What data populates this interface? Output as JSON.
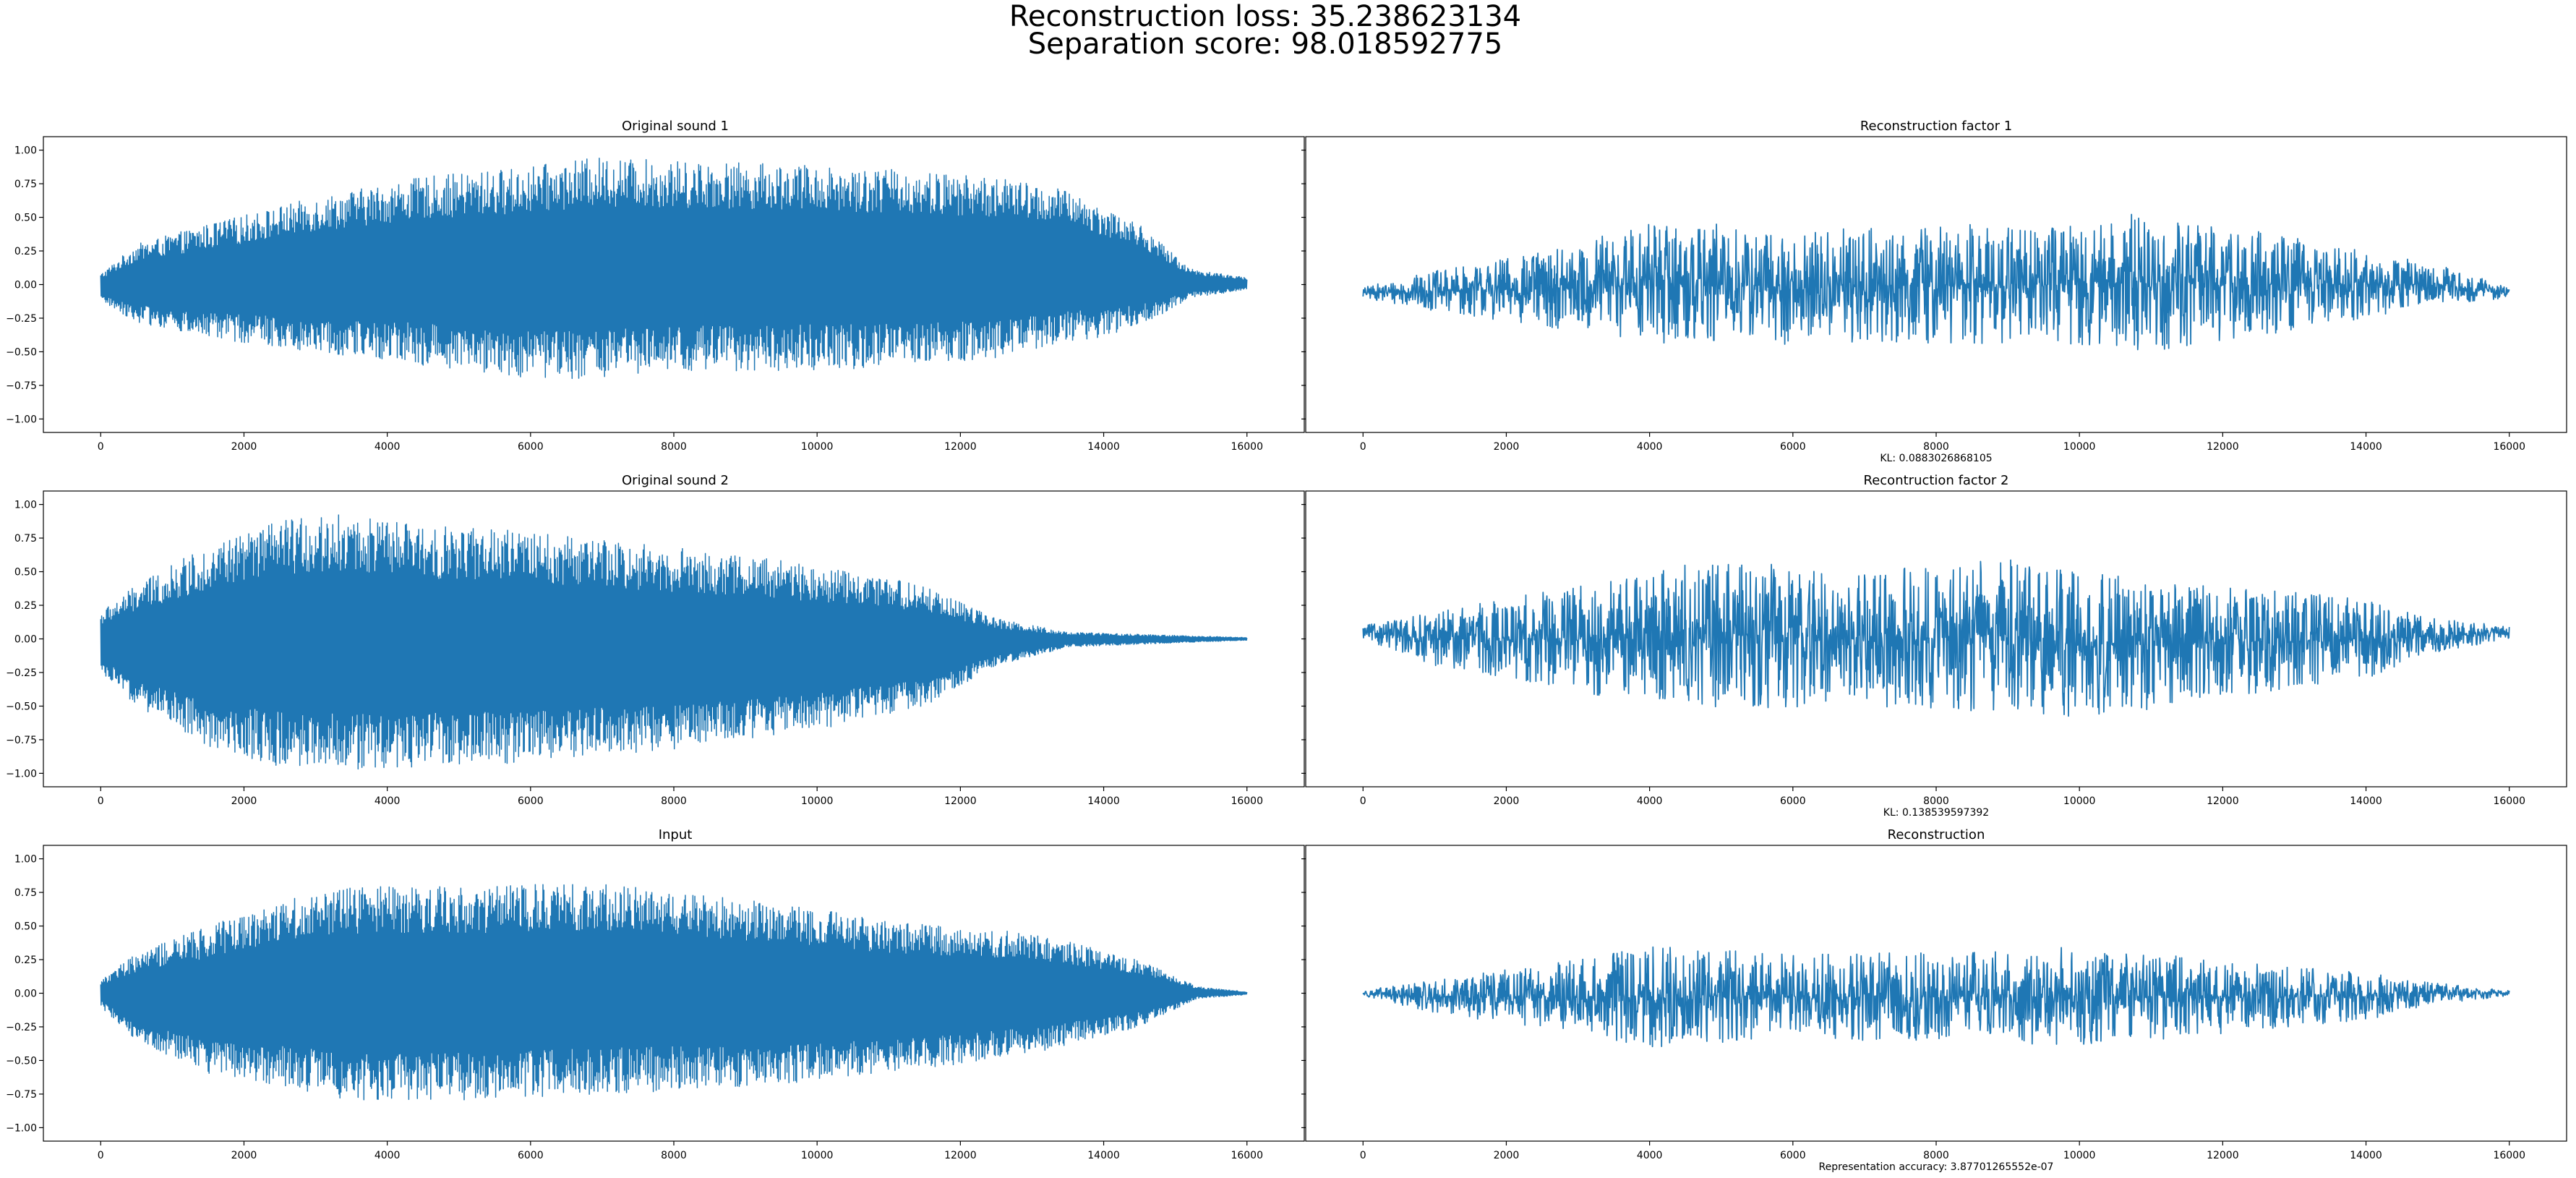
{
  "figure": {
    "title_line1": "Reconstruction loss: 35.238623134",
    "title_line2": "Separation score: 98.018592775",
    "line_color": "#1f77b4"
  },
  "chart_data": [
    {
      "type": "line",
      "title": "Original sound 1",
      "xlabel": "",
      "xlim": [
        -800,
        16800
      ],
      "ylim": [
        -1.1,
        1.1
      ],
      "x_ticks": [
        0,
        2000,
        4000,
        6000,
        8000,
        10000,
        12000,
        14000,
        16000
      ],
      "x_tick_labels": [
        "0",
        "2000",
        "4000",
        "6000",
        "8000",
        "10000",
        "12000",
        "14000",
        "16000"
      ],
      "y_ticks": [
        -1.0,
        -0.75,
        -0.5,
        -0.25,
        0.0,
        0.25,
        0.5,
        0.75,
        1.0
      ],
      "y_tick_labels": [
        "−1.00",
        "−0.75",
        "−0.50",
        "−0.25",
        "0.00",
        "0.25",
        "0.50",
        "0.75",
        "1.00"
      ],
      "series": [
        {
          "name": "",
          "samples": 16000,
          "envelope_upper": [
            [
              0,
              0.08
            ],
            [
              500,
              0.3
            ],
            [
              1500,
              0.45
            ],
            [
              3000,
              0.65
            ],
            [
              4500,
              0.8
            ],
            [
              6000,
              0.88
            ],
            [
              7000,
              0.95
            ],
            [
              8000,
              0.92
            ],
            [
              9500,
              0.9
            ],
            [
              11000,
              0.86
            ],
            [
              12500,
              0.8
            ],
            [
              13500,
              0.7
            ],
            [
              14500,
              0.45
            ],
            [
              15200,
              0.12
            ],
            [
              16000,
              0.05
            ]
          ],
          "envelope_lower": [
            [
              0,
              -0.12
            ],
            [
              500,
              -0.28
            ],
            [
              1500,
              -0.4
            ],
            [
              3000,
              -0.5
            ],
            [
              4500,
              -0.6
            ],
            [
              6000,
              -0.7
            ],
            [
              7000,
              -0.7
            ],
            [
              8000,
              -0.66
            ],
            [
              9500,
              -0.64
            ],
            [
              11000,
              -0.62
            ],
            [
              12500,
              -0.55
            ],
            [
              13500,
              -0.45
            ],
            [
              14500,
              -0.32
            ],
            [
              15200,
              -0.1
            ],
            [
              16000,
              -0.04
            ]
          ]
        }
      ]
    },
    {
      "type": "line",
      "title": "Reconstruction factor 1",
      "xlabel": "KL: 0.0883026868105",
      "xlim": [
        -800,
        16800
      ],
      "ylim": [
        -1.1,
        1.1
      ],
      "x_ticks": [
        0,
        2000,
        4000,
        6000,
        8000,
        10000,
        12000,
        14000,
        16000
      ],
      "x_tick_labels": [
        "0",
        "2000",
        "4000",
        "6000",
        "8000",
        "10000",
        "12000",
        "14000",
        "16000"
      ],
      "series": [
        {
          "name": "",
          "samples": 16000,
          "envelope_upper": [
            [
              0,
              -0.02
            ],
            [
              1000,
              0.1
            ],
            [
              3000,
              0.3
            ],
            [
              4000,
              0.5
            ],
            [
              6000,
              0.4
            ],
            [
              8000,
              0.45
            ],
            [
              10000,
              0.45
            ],
            [
              11000,
              0.55
            ],
            [
              13000,
              0.35
            ],
            [
              15000,
              0.15
            ],
            [
              16000,
              -0.02
            ]
          ],
          "envelope_lower": [
            [
              0,
              -0.1
            ],
            [
              1000,
              -0.2
            ],
            [
              3000,
              -0.35
            ],
            [
              4000,
              -0.45
            ],
            [
              6000,
              -0.45
            ],
            [
              8000,
              -0.45
            ],
            [
              10000,
              -0.45
            ],
            [
              11000,
              -0.5
            ],
            [
              13000,
              -0.35
            ],
            [
              15000,
              -0.15
            ],
            [
              16000,
              -0.1
            ]
          ]
        }
      ]
    },
    {
      "type": "line",
      "title": "Original sound 2",
      "xlabel": "",
      "xlim": [
        -800,
        16800
      ],
      "ylim": [
        -1.1,
        1.1
      ],
      "x_ticks": [
        0,
        2000,
        4000,
        6000,
        8000,
        10000,
        12000,
        14000,
        16000
      ],
      "x_tick_labels": [
        "0",
        "2000",
        "4000",
        "6000",
        "8000",
        "10000",
        "12000",
        "14000",
        "16000"
      ],
      "y_ticks": [
        -1.0,
        -0.75,
        -0.5,
        -0.25,
        0.0,
        0.25,
        0.5,
        0.75,
        1.0
      ],
      "y_tick_labels": [
        "−1.00",
        "−0.75",
        "−0.50",
        "−0.25",
        "0.00",
        "0.25",
        "0.50",
        "0.75",
        "1.00"
      ],
      "series": [
        {
          "name": "",
          "samples": 16000,
          "envelope_upper": [
            [
              0,
              0.2
            ],
            [
              500,
              0.4
            ],
            [
              1500,
              0.7
            ],
            [
              2500,
              0.88
            ],
            [
              3300,
              0.93
            ],
            [
              4500,
              0.85
            ],
            [
              6000,
              0.8
            ],
            [
              8000,
              0.68
            ],
            [
              10000,
              0.55
            ],
            [
              11500,
              0.4
            ],
            [
              12500,
              0.15
            ],
            [
              13500,
              0.05
            ],
            [
              16000,
              0.01
            ]
          ],
          "envelope_lower": [
            [
              0,
              -0.25
            ],
            [
              500,
              -0.5
            ],
            [
              1500,
              -0.8
            ],
            [
              2500,
              -0.95
            ],
            [
              3300,
              -0.98
            ],
            [
              4500,
              -0.95
            ],
            [
              6000,
              -0.92
            ],
            [
              8000,
              -0.82
            ],
            [
              10000,
              -0.68
            ],
            [
              11500,
              -0.5
            ],
            [
              12500,
              -0.2
            ],
            [
              13500,
              -0.06
            ],
            [
              16000,
              -0.01
            ]
          ]
        }
      ]
    },
    {
      "type": "line",
      "title": "Recontruction factor 2",
      "xlabel": "KL: 0.138539597392",
      "xlim": [
        -800,
        16800
      ],
      "ylim": [
        -1.1,
        1.1
      ],
      "x_ticks": [
        0,
        2000,
        4000,
        6000,
        8000,
        10000,
        12000,
        14000,
        16000
      ],
      "x_tick_labels": [
        "0",
        "2000",
        "4000",
        "6000",
        "8000",
        "10000",
        "12000",
        "14000",
        "16000"
      ],
      "series": [
        {
          "name": "",
          "samples": 16000,
          "envelope_upper": [
            [
              0,
              0.1
            ],
            [
              1000,
              0.2
            ],
            [
              3000,
              0.4
            ],
            [
              5000,
              0.6
            ],
            [
              7000,
              0.5
            ],
            [
              9000,
              0.6
            ],
            [
              10000,
              0.5
            ],
            [
              12000,
              0.4
            ],
            [
              14000,
              0.3
            ],
            [
              15000,
              0.15
            ],
            [
              16000,
              0.1
            ]
          ],
          "envelope_lower": [
            [
              0,
              0.0
            ],
            [
              1000,
              -0.2
            ],
            [
              3000,
              -0.4
            ],
            [
              5000,
              -0.55
            ],
            [
              7000,
              -0.5
            ],
            [
              9000,
              -0.55
            ],
            [
              10000,
              -0.6
            ],
            [
              12000,
              -0.45
            ],
            [
              14000,
              -0.3
            ],
            [
              15000,
              -0.1
            ],
            [
              16000,
              0.0
            ]
          ]
        }
      ]
    },
    {
      "type": "line",
      "title": "Input",
      "xlabel": "",
      "xlim": [
        -800,
        16800
      ],
      "ylim": [
        -1.1,
        1.1
      ],
      "x_ticks": [
        0,
        2000,
        4000,
        6000,
        8000,
        10000,
        12000,
        14000,
        16000
      ],
      "x_tick_labels": [
        "0",
        "2000",
        "4000",
        "6000",
        "8000",
        "10000",
        "12000",
        "14000",
        "16000"
      ],
      "y_ticks": [
        -1.0,
        -0.75,
        -0.5,
        -0.25,
        0.0,
        0.25,
        0.5,
        0.75,
        1.0
      ],
      "y_tick_labels": [
        "−1.00",
        "−0.75",
        "−0.50",
        "−0.25",
        "0.00",
        "0.25",
        "0.50",
        "0.75",
        "1.00"
      ],
      "series": [
        {
          "name": "",
          "samples": 16000,
          "envelope_upper": [
            [
              0,
              0.1
            ],
            [
              500,
              0.3
            ],
            [
              1500,
              0.5
            ],
            [
              2500,
              0.7
            ],
            [
              3500,
              0.8
            ],
            [
              5000,
              0.8
            ],
            [
              7000,
              0.82
            ],
            [
              9000,
              0.7
            ],
            [
              11000,
              0.55
            ],
            [
              13000,
              0.45
            ],
            [
              14500,
              0.25
            ],
            [
              15300,
              0.05
            ],
            [
              16000,
              0.01
            ]
          ],
          "envelope_lower": [
            [
              0,
              -0.1
            ],
            [
              500,
              -0.35
            ],
            [
              1500,
              -0.6
            ],
            [
              2500,
              -0.7
            ],
            [
              3500,
              -0.8
            ],
            [
              5000,
              -0.8
            ],
            [
              7000,
              -0.75
            ],
            [
              9000,
              -0.7
            ],
            [
              11000,
              -0.6
            ],
            [
              13000,
              -0.45
            ],
            [
              14500,
              -0.25
            ],
            [
              15300,
              -0.04
            ],
            [
              16000,
              -0.01
            ]
          ]
        }
      ]
    },
    {
      "type": "line",
      "title": "Reconstruction",
      "xlabel": "Representation accuracy: 3.87701265552e-07",
      "xlim": [
        -800,
        16800
      ],
      "ylim": [
        -1.1,
        1.1
      ],
      "x_ticks": [
        0,
        2000,
        4000,
        6000,
        8000,
        10000,
        12000,
        14000,
        16000
      ],
      "x_tick_labels": [
        "0",
        "2000",
        "4000",
        "6000",
        "8000",
        "10000",
        "12000",
        "14000",
        "16000"
      ],
      "series": [
        {
          "name": "",
          "samples": 16000,
          "envelope_upper": [
            [
              0,
              0.02
            ],
            [
              1000,
              0.1
            ],
            [
              3000,
              0.25
            ],
            [
              4000,
              0.35
            ],
            [
              6000,
              0.3
            ],
            [
              8000,
              0.3
            ],
            [
              10000,
              0.35
            ],
            [
              12000,
              0.25
            ],
            [
              14000,
              0.15
            ],
            [
              15000,
              0.08
            ],
            [
              16000,
              0.02
            ]
          ],
          "envelope_lower": [
            [
              0,
              -0.02
            ],
            [
              1000,
              -0.15
            ],
            [
              3000,
              -0.3
            ],
            [
              4000,
              -0.4
            ],
            [
              6000,
              -0.35
            ],
            [
              8000,
              -0.35
            ],
            [
              10000,
              -0.4
            ],
            [
              12000,
              -0.3
            ],
            [
              14000,
              -0.2
            ],
            [
              15000,
              -0.08
            ],
            [
              16000,
              -0.02
            ]
          ]
        }
      ]
    }
  ]
}
